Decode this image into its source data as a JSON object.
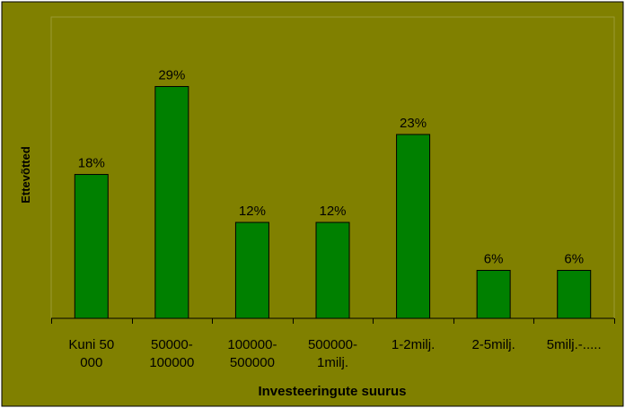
{
  "chart_data": {
    "type": "bar",
    "categories": [
      [
        "Kuni 50",
        "000"
      ],
      [
        "50000-",
        "100000"
      ],
      [
        "100000-",
        "500000"
      ],
      [
        "500000-",
        "1milj."
      ],
      [
        "1-2milj."
      ],
      [
        "2-5milj."
      ],
      [
        "5milj.-....."
      ]
    ],
    "values": [
      18,
      29,
      12,
      12,
      23,
      6,
      6
    ],
    "data_labels": [
      "18%",
      "29%",
      "12%",
      "12%",
      "23%",
      "6%",
      "6%"
    ],
    "unit": "%",
    "xlabel": "Investeeringute suurus",
    "ylabel": "Ettevõtted",
    "ylim": [
      0,
      35
    ],
    "grid": false,
    "legend": "none"
  },
  "colors": {
    "background": "#808000",
    "bar_fill": "#008000",
    "bar_stroke": "#000000",
    "text": "#000000",
    "axis": "#000000"
  }
}
